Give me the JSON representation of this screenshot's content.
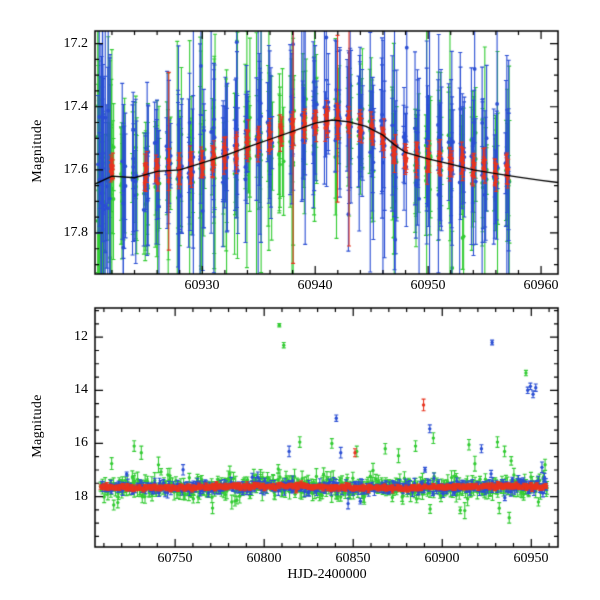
{
  "figure": {
    "background": "#ffffff",
    "axis_color": "#000000",
    "grid": false,
    "legend": null
  },
  "colors": {
    "red": "#e8341f",
    "green": "#33cc33",
    "blue": "#2b4fd4"
  },
  "chart_data": [
    {
      "type": "scatter",
      "id": "top-panel",
      "title": "",
      "xlabel": "",
      "ylabel": "Magnitude",
      "y_axis_inverted": true,
      "xlim": [
        60920.5,
        60961.5
      ],
      "ylim_top_to_bottom": [
        17.16,
        17.93
      ],
      "xticks": [
        "60930",
        "60940",
        "60950",
        "60960"
      ],
      "xtick_values": [
        60930,
        60940,
        60950,
        60960
      ],
      "xtick_minor_step": 2,
      "yticks": [
        "17.2",
        "17.4",
        "17.6",
        "17.8"
      ],
      "ytick_values": [
        17.2,
        17.4,
        17.6,
        17.8
      ],
      "ytick_minor_step": 0.05,
      "description": "Nightly multi-band photometry (three series: red, green, blue points with error bars) around a shallow brightening from mag ~17.6 to ~17.44 near HJD 60941, with a black model curve.",
      "model_curve": {
        "color": "#000000",
        "points": [
          [
            60920.5,
            17.645
          ],
          [
            60922,
            17.62
          ],
          [
            60924,
            17.625
          ],
          [
            60926,
            17.605
          ],
          [
            60928,
            17.6
          ],
          [
            60930,
            17.578
          ],
          [
            60932,
            17.555
          ],
          [
            60934,
            17.528
          ],
          [
            60936,
            17.503
          ],
          [
            60938,
            17.478
          ],
          [
            60940,
            17.452
          ],
          [
            60941.5,
            17.442
          ],
          [
            60943,
            17.448
          ],
          [
            60944.5,
            17.462
          ],
          [
            60946,
            17.49
          ],
          [
            60947,
            17.52
          ],
          [
            60948,
            17.545
          ],
          [
            60950,
            17.565
          ],
          [
            60952,
            17.582
          ],
          [
            60954,
            17.6
          ],
          [
            60956,
            17.612
          ],
          [
            60958,
            17.623
          ],
          [
            60960,
            17.633
          ],
          [
            60961.5,
            17.64
          ]
        ]
      },
      "nightly_mean_mag": [
        [
          60921,
          17.62
        ],
        [
          60922,
          17.6
        ],
        [
          60923,
          17.615
        ],
        [
          60924,
          17.63
        ],
        [
          60925,
          17.615
        ],
        [
          60926,
          17.6
        ],
        [
          60927,
          17.585
        ],
        [
          60928,
          17.6
        ],
        [
          60929,
          17.59
        ],
        [
          60930,
          17.575
        ],
        [
          60931,
          17.565
        ],
        [
          60932,
          17.55
        ],
        [
          60933,
          17.54
        ],
        [
          60934,
          17.525
        ],
        [
          60935,
          17.51
        ],
        [
          60936,
          17.5
        ],
        [
          60937,
          17.49
        ],
        [
          60938,
          17.475
        ],
        [
          60939,
          17.46
        ],
        [
          60940,
          17.45
        ],
        [
          60941,
          17.44
        ],
        [
          60942,
          17.445
        ],
        [
          60943,
          17.45
        ],
        [
          60944,
          17.46
        ],
        [
          60945,
          17.47
        ],
        [
          60946,
          17.5
        ],
        [
          60947,
          17.545
        ],
        [
          60948,
          17.56
        ],
        [
          60949,
          17.565
        ],
        [
          60950,
          17.57
        ],
        [
          60951,
          17.575
        ],
        [
          60952,
          17.58
        ],
        [
          60953,
          17.585
        ],
        [
          60954,
          17.59
        ],
        [
          60955,
          17.595
        ],
        [
          60956,
          17.6
        ],
        [
          60957,
          17.6
        ]
      ],
      "series": [
        {
          "name": "green",
          "per_night": 8,
          "xspread": 0.22,
          "sigma": 0.045,
          "sigma2": 0.16,
          "sigma2_frac": 0.1,
          "err": [
            0.07,
            0.22
          ],
          "big_err_frac": 0.12,
          "skip_frac": 0.08,
          "night_range": [
            60921,
            60957
          ],
          "mag_offset": 0.01,
          "edge_cluster": {
            "x0": 60920.7,
            "x1": 60921.9,
            "n": 16,
            "sigma": 0.13,
            "err": [
              0.18,
              0.45
            ]
          }
        },
        {
          "name": "blue",
          "per_night": 8,
          "xspread": 0.22,
          "sigma": 0.05,
          "sigma2": 0.16,
          "sigma2_frac": 0.1,
          "err": [
            0.06,
            0.25
          ],
          "big_err_frac": 0.12,
          "skip_frac": 0.08,
          "night_range": [
            60921,
            60957
          ],
          "mag_offset": -0.01,
          "edge_cluster": {
            "x0": 60920.7,
            "x1": 60921.9,
            "n": 16,
            "sigma": 0.13,
            "err": [
              0.18,
              0.45
            ]
          }
        },
        {
          "name": "red",
          "per_night": 7,
          "xspread": 0.11,
          "sigma": 0.013,
          "sigma2": 0.03,
          "sigma2_frac": 0.05,
          "err": [
            0.02,
            0.05
          ],
          "big_err_frac": 0.02,
          "skip_frac": 0.05,
          "night_range": [
            60922,
            60957
          ],
          "mag_offset": 0
        }
      ]
    },
    {
      "type": "scatter",
      "id": "bottom-panel",
      "title": "",
      "xlabel": "HJD-2400000",
      "ylabel": "Magnitude",
      "y_axis_inverted": true,
      "xlim": [
        60705,
        60965
      ],
      "ylim_top_to_bottom": [
        10.9,
        19.9
      ],
      "xticks": [
        "60750",
        "60800",
        "60850",
        "60900",
        "60950"
      ],
      "xtick_values": [
        60750,
        60800,
        60850,
        60900,
        60950
      ],
      "xtick_minor_step": 10,
      "yticks": [
        "12",
        "14",
        "16",
        "18"
      ],
      "ytick_values": [
        12,
        14,
        16,
        18
      ],
      "ytick_minor_step": 0.5,
      "description": "Long-term light curve: quiescent band near mag 17.6-17.7 from HJD 60708 to 60958 with bright outbursts up to mag ~11.6.",
      "baseline": {
        "x_start": 60708,
        "x_end": 60958,
        "mean_mag": 17.64,
        "series": [
          {
            "name": "green",
            "per_day": 2.0,
            "sigma": 0.18,
            "sigma2": 0.5,
            "sigma2_frac": 0.1,
            "err": [
              0.1,
              0.3
            ],
            "mag_offset": 0
          },
          {
            "name": "blue",
            "per_day": 1.5,
            "sigma": 0.09,
            "sigma2": 0.3,
            "sigma2_frac": 0.08,
            "err": [
              0.07,
              0.2
            ],
            "mag_offset": 0
          },
          {
            "name": "red",
            "per_day": 2.2,
            "sigma": 0.035,
            "sigma2": 0.08,
            "sigma2_frac": 0.05,
            "err": [
              0.04,
              0.09
            ],
            "mag_offset": 0
          }
        ]
      },
      "outliers": [
        {
          "color": "green",
          "x": 60727,
          "mag": 16.1,
          "err": 0.2
        },
        {
          "color": "green",
          "x": 60731,
          "mag": 16.35,
          "err": 0.25
        },
        {
          "color": "green",
          "x": 60808.5,
          "mag": 11.55,
          "err": 0.06
        },
        {
          "color": "green",
          "x": 60811,
          "mag": 12.3,
          "err": 0.1
        },
        {
          "color": "blue",
          "x": 60814,
          "mag": 16.3,
          "err": 0.2
        },
        {
          "color": "green",
          "x": 60820,
          "mag": 15.95,
          "err": 0.2
        },
        {
          "color": "green",
          "x": 60838,
          "mag": 16.0,
          "err": 0.18
        },
        {
          "color": "blue",
          "x": 60840.5,
          "mag": 15.05,
          "err": 0.12
        },
        {
          "color": "blue",
          "x": 60843,
          "mag": 16.35,
          "err": 0.2
        },
        {
          "color": "red",
          "x": 60851,
          "mag": 16.35,
          "err": 0.15
        },
        {
          "color": "green",
          "x": 60852,
          "mag": 16.3,
          "err": 0.2
        },
        {
          "color": "green",
          "x": 60868,
          "mag": 16.2,
          "err": 0.2
        },
        {
          "color": "green",
          "x": 60885,
          "mag": 16.1,
          "err": 0.2
        },
        {
          "color": "red",
          "x": 60889.5,
          "mag": 14.55,
          "err": 0.22
        },
        {
          "color": "blue",
          "x": 60893,
          "mag": 15.45,
          "err": 0.15
        },
        {
          "color": "green",
          "x": 60895,
          "mag": 15.8,
          "err": 0.2
        },
        {
          "color": "green",
          "x": 60915,
          "mag": 16.05,
          "err": 0.2
        },
        {
          "color": "blue",
          "x": 60922,
          "mag": 16.2,
          "err": 0.15
        },
        {
          "color": "blue",
          "x": 60928,
          "mag": 12.2,
          "err": 0.09
        },
        {
          "color": "green",
          "x": 60931,
          "mag": 15.95,
          "err": 0.2
        },
        {
          "color": "green",
          "x": 60935,
          "mag": 16.3,
          "err": 0.2
        },
        {
          "color": "green",
          "x": 60947,
          "mag": 13.35,
          "err": 0.1
        },
        {
          "color": "blue",
          "x": 60948,
          "mag": 14.0,
          "err": 0.12
        },
        {
          "color": "blue",
          "x": 60949.5,
          "mag": 13.85,
          "err": 0.12
        },
        {
          "color": "blue",
          "x": 60951,
          "mag": 14.15,
          "err": 0.13
        },
        {
          "color": "blue",
          "x": 60952.5,
          "mag": 13.9,
          "err": 0.14
        },
        {
          "color": "blue",
          "x": 60956,
          "mag": 16.9,
          "err": 0.2
        }
      ]
    }
  ]
}
